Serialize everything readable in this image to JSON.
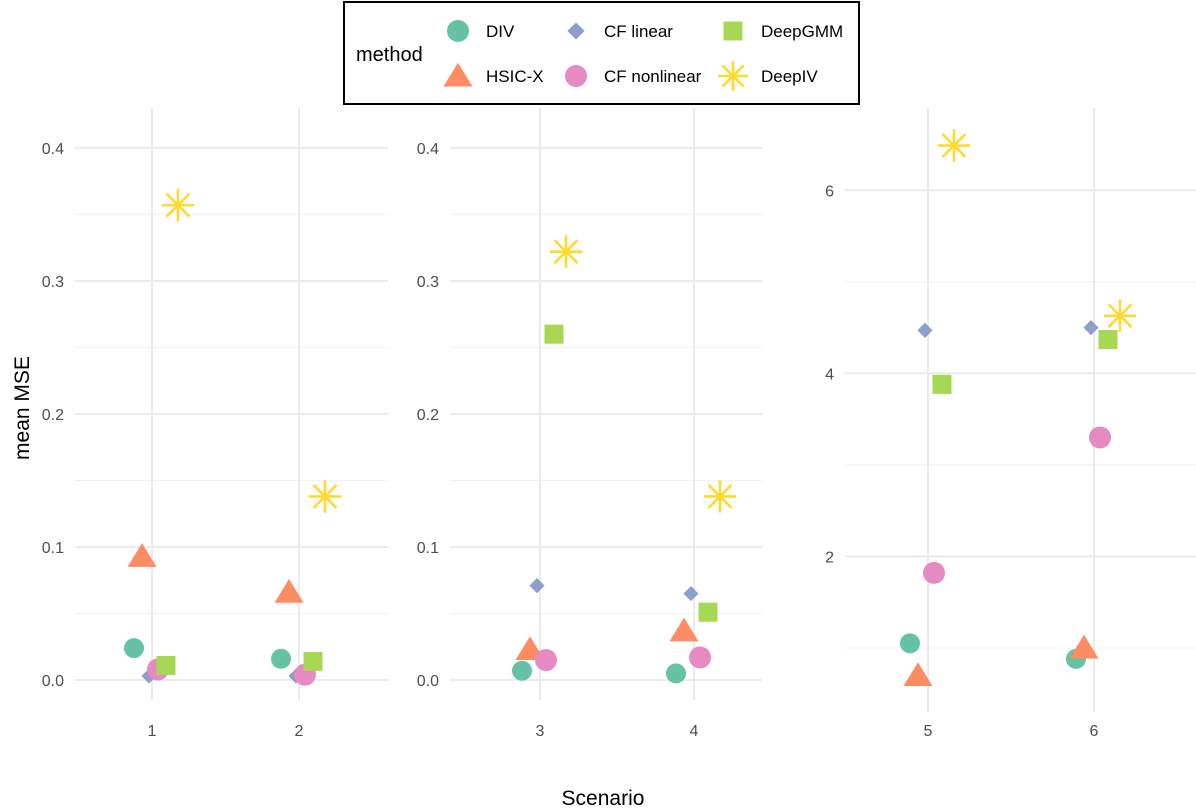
{
  "chart_data": {
    "type": "scatter",
    "xlabel": "Scenario",
    "ylabel": "mean MSE",
    "legend": {
      "title": "method",
      "placement": "top",
      "entries": [
        {
          "name": "DIV",
          "shape": "circle",
          "color": "#66c2a5"
        },
        {
          "name": "CF linear",
          "shape": "diamond",
          "color": "#8da0cb"
        },
        {
          "name": "DeepGMM",
          "shape": "square",
          "color": "#a6d854"
        },
        {
          "name": "HSIC-X",
          "shape": "triangle",
          "color": "#fc8d62"
        },
        {
          "name": "CF nonlinear",
          "shape": "circle",
          "color": "#e78ac3"
        },
        {
          "name": "DeepIV",
          "shape": "asterisk",
          "color": "#ffd92f"
        }
      ]
    },
    "grid": true,
    "panels": [
      {
        "scenarios": [
          "1",
          "2"
        ],
        "ylim": [
          -0.015,
          0.43
        ],
        "yticks": [
          "0.0",
          "0.1",
          "0.2",
          "0.3",
          "0.4"
        ],
        "ytick_values": [
          0,
          0.1,
          0.2,
          0.3,
          0.4
        ],
        "series": [
          {
            "name": "DIV",
            "values": [
              0.024,
              0.016
            ]
          },
          {
            "name": "HSIC-X",
            "values": [
              0.093,
              0.066
            ]
          },
          {
            "name": "CF linear",
            "values": [
              0.003,
              0.003
            ]
          },
          {
            "name": "CF nonlinear",
            "values": [
              0.008,
              0.004
            ]
          },
          {
            "name": "DeepGMM",
            "values": [
              0.011,
              0.014
            ]
          },
          {
            "name": "DeepIV",
            "values": [
              0.357,
              0.138
            ]
          }
        ]
      },
      {
        "scenarios": [
          "3",
          "4"
        ],
        "ylim": [
          -0.015,
          0.43
        ],
        "yticks": [
          "0.0",
          "0.1",
          "0.2",
          "0.3",
          "0.4"
        ],
        "ytick_values": [
          0,
          0.1,
          0.2,
          0.3,
          0.4
        ],
        "series": [
          {
            "name": "DIV",
            "values": [
              0.007,
              0.005
            ]
          },
          {
            "name": "HSIC-X",
            "values": [
              0.023,
              0.037
            ]
          },
          {
            "name": "CF linear",
            "values": [
              0.071,
              0.065
            ]
          },
          {
            "name": "CF nonlinear",
            "values": [
              0.015,
              0.017
            ]
          },
          {
            "name": "DeepGMM",
            "values": [
              0.26,
              0.051
            ]
          },
          {
            "name": "DeepIV",
            "values": [
              0.322,
              0.138
            ]
          }
        ]
      },
      {
        "scenarios": [
          "5",
          "6"
        ],
        "ylim": [
          0.3,
          6.9
        ],
        "yticks": [
          "2",
          "4",
          "6"
        ],
        "ytick_values": [
          2,
          4,
          6
        ],
        "series": [
          {
            "name": "DIV",
            "values": [
              1.05,
              0.88
            ]
          },
          {
            "name": "HSIC-X",
            "values": [
              0.7,
              1.0
            ]
          },
          {
            "name": "CF linear",
            "values": [
              4.47,
              4.5
            ]
          },
          {
            "name": "CF nonlinear",
            "values": [
              1.82,
              3.3
            ]
          },
          {
            "name": "DeepGMM",
            "values": [
              3.88,
              4.37
            ]
          },
          {
            "name": "DeepIV",
            "values": [
              6.49,
              4.63
            ]
          }
        ]
      }
    ]
  }
}
